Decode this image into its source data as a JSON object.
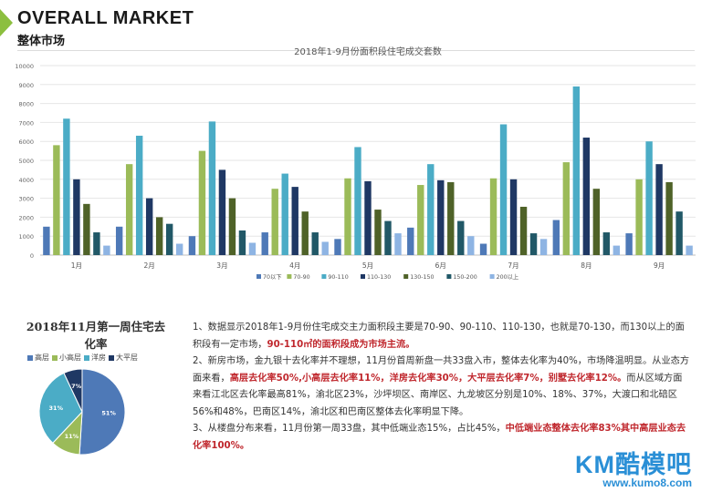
{
  "header": {
    "title_en": "OVERALL MARKET",
    "title_cn": "整体市场"
  },
  "chart_data": [
    {
      "type": "bar",
      "title": "2018年1-9月份面积段住宅成交套数",
      "categories": [
        "1月",
        "2月",
        "3月",
        "4月",
        "5月",
        "6月",
        "7月",
        "8月",
        "9月"
      ],
      "series": [
        {
          "name": "70以下",
          "color": "#4e79b7",
          "values": [
            1500,
            1500,
            1000,
            1200,
            850,
            1450,
            600,
            1850,
            1150
          ]
        },
        {
          "name": "70-90",
          "color": "#9bbb59",
          "values": [
            5800,
            4800,
            5500,
            3500,
            4050,
            3700,
            4050,
            4900,
            4000
          ]
        },
        {
          "name": "90-110",
          "color": "#4bacc6",
          "values": [
            7200,
            6300,
            7050,
            4300,
            5700,
            4800,
            6900,
            8900,
            6000
          ]
        },
        {
          "name": "110-130",
          "color": "#1f3864",
          "values": [
            4000,
            3000,
            4500,
            3600,
            3900,
            3950,
            4000,
            6200,
            4800
          ]
        },
        {
          "name": "130-150",
          "color": "#4f6228",
          "values": [
            2700,
            2000,
            3000,
            2300,
            2400,
            3850,
            2550,
            3500,
            3850
          ]
        },
        {
          "name": "150-200",
          "color": "#215867",
          "values": [
            1200,
            1650,
            1300,
            1200,
            1800,
            1800,
            1150,
            1200,
            2300
          ]
        },
        {
          "name": "200以上",
          "color": "#8eb4e3",
          "values": [
            500,
            600,
            650,
            700,
            1150,
            1000,
            850,
            500,
            500
          ]
        }
      ],
      "yticks": [
        "0",
        "1000",
        "2000",
        "3000",
        "4000",
        "5000",
        "6000",
        "7000",
        "8000",
        "9000",
        "10000"
      ],
      "ylim": [
        0,
        10000
      ],
      "grid": true,
      "legend": "bottom"
    },
    {
      "type": "pie",
      "title": "2018年11月第一周住宅去化率",
      "slices": [
        {
          "name": "高层",
          "value": 51,
          "label": "51%",
          "color": "#4e79b7"
        },
        {
          "name": "小高层",
          "value": 11,
          "label": "11%",
          "color": "#9bbb59"
        },
        {
          "name": "洋房",
          "value": 31,
          "label": "31%",
          "color": "#4bacc6"
        },
        {
          "name": "大平层",
          "value": 7,
          "label": "7%",
          "color": "#1f3864"
        }
      ],
      "legend": "top"
    }
  ],
  "notes": {
    "p1_a": "1、数据显示2018年1-9月份住宅成交主力面积段主要是70-90、90-110、110-130，也就是70-130，而130以上的面积段有一定市场，",
    "p1_h": "90-110㎡的面积段成为市场主流。",
    "p2_a": "2、新房市场，金九银十去化率并不理想，11月份首周新盘一共33盘入市，整体去化率为40%，市场降温明显。从业态方面来看，",
    "p2_h": "高层去化率50%,小高层去化率11%，洋房去化率30%，大平层去化率7%，别墅去化率12%。",
    "p2_b": "而从区域方面来看江北区去化率最高81%，渝北区23%，沙坪坝区、南岸区、九龙坡区分别是10%、18%、37%，大渡口和北碚区56%和48%，巴南区14%，渝北区和巴南区整体去化率明显下降。",
    "p3_a": "3、从楼盘分布来看，11月份第一周33盘，其中低端业态15%，占比45%，",
    "p3_h": "中低端业态整体去化率83%其中高层业态去化率100%。"
  },
  "brand": {
    "logo": "KM酷模吧",
    "url": "www.kumo8.com"
  }
}
